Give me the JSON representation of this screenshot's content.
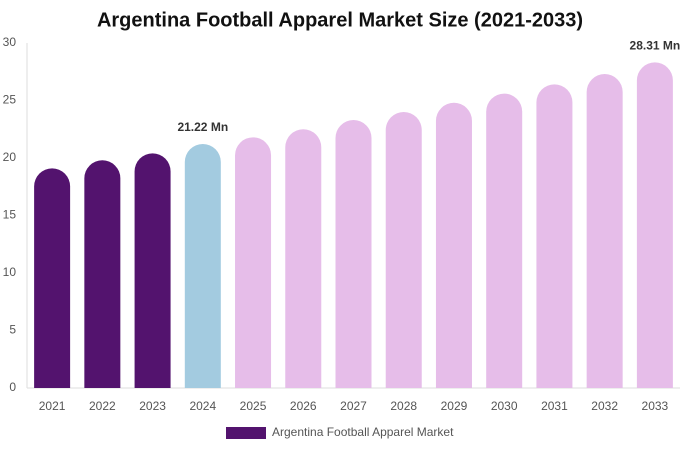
{
  "chart_data": {
    "type": "bar",
    "title": "Argentina Football Apparel Market Size (2021-2033)",
    "categories": [
      "2021",
      "2022",
      "2023",
      "2024",
      "2025",
      "2026",
      "2027",
      "2028",
      "2029",
      "2030",
      "2031",
      "2032",
      "2033"
    ],
    "series": [
      {
        "name": "Argentina Football Apparel Market",
        "color": "#53136e",
        "colors": [
          "#53136e",
          "#53136e",
          "#53136e",
          "#a3cbe0",
          "#e6bde9",
          "#e6bde9",
          "#e6bde9",
          "#e6bde9",
          "#e6bde9",
          "#e6bde9",
          "#e6bde9",
          "#e6bde9",
          "#e6bde9"
        ],
        "values": [
          19.1,
          19.8,
          20.4,
          21.22,
          21.8,
          22.5,
          23.3,
          24.0,
          24.8,
          25.6,
          26.4,
          27.3,
          28.31
        ],
        "value_labels": [
          null,
          null,
          null,
          "21.22 Mn",
          null,
          null,
          null,
          null,
          null,
          null,
          null,
          null,
          "28.31 Mn"
        ]
      }
    ],
    "ylim": [
      0,
      30
    ],
    "yticks": [
      0,
      5,
      10,
      15,
      20,
      25,
      30
    ],
    "grid": false
  }
}
